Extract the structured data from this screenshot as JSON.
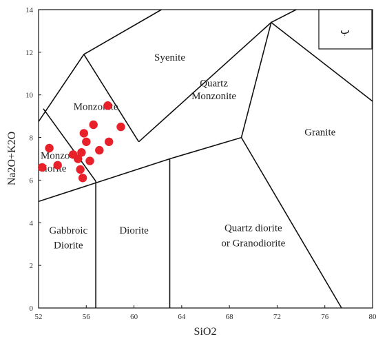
{
  "chart_data": {
    "type": "scatter",
    "title": "",
    "xlabel": "SiO2",
    "ylabel": "Na2O+K2O",
    "xlim": [
      52,
      80
    ],
    "ylim": [
      0,
      14
    ],
    "x_ticks": [
      {
        "value": 52,
        "label": "52"
      },
      {
        "value": 56,
        "label": "56"
      },
      {
        "value": 60,
        "label": "60"
      },
      {
        "value": 64,
        "label": "64"
      },
      {
        "value": 68,
        "label": "68"
      },
      {
        "value": 72,
        "label": "72"
      },
      {
        "value": 76,
        "label": "76"
      },
      {
        "value": 80,
        "label": "80"
      }
    ],
    "y_ticks": [
      {
        "value": 0,
        "label": "0"
      },
      {
        "value": 2,
        "label": "2"
      },
      {
        "value": 4,
        "label": "4"
      },
      {
        "value": 6,
        "label": "6"
      },
      {
        "value": 8,
        "label": "8"
      },
      {
        "value": 10,
        "label": "10"
      },
      {
        "value": 12,
        "label": "12"
      },
      {
        "value": 14,
        "label": "14"
      }
    ],
    "grid": false,
    "legend": "none",
    "point_color": "#e8202a",
    "points": [
      {
        "x": 52.3,
        "y": 6.6
      },
      {
        "x": 52.9,
        "y": 7.5
      },
      {
        "x": 53.6,
        "y": 6.7
      },
      {
        "x": 54.9,
        "y": 7.2
      },
      {
        "x": 55.3,
        "y": 7.0
      },
      {
        "x": 55.5,
        "y": 6.5
      },
      {
        "x": 55.6,
        "y": 7.3
      },
      {
        "x": 55.7,
        "y": 6.1
      },
      {
        "x": 55.8,
        "y": 8.2
      },
      {
        "x": 56.0,
        "y": 7.8
      },
      {
        "x": 56.3,
        "y": 6.9
      },
      {
        "x": 56.6,
        "y": 8.6
      },
      {
        "x": 57.1,
        "y": 7.4
      },
      {
        "x": 57.8,
        "y": 9.5
      },
      {
        "x": 57.9,
        "y": 7.8
      },
      {
        "x": 58.9,
        "y": 8.5
      }
    ],
    "field_boundaries": [
      [
        [
          52,
          8.75
        ],
        [
          55.8,
          11.9
        ],
        [
          62.3,
          14
        ]
      ],
      [
        [
          55.8,
          11.9
        ],
        [
          60.4,
          7.8
        ]
      ],
      [
        [
          52.4,
          9.35
        ],
        [
          56.8,
          5.95
        ]
      ],
      [
        [
          52,
          5.0
        ],
        [
          63,
          7.0
        ],
        [
          69,
          8.0
        ],
        [
          71.5,
          13.4
        ],
        [
          80,
          9.7
        ]
      ],
      [
        [
          60.4,
          7.8
        ],
        [
          71.5,
          13.4
        ],
        [
          73.6,
          14
        ]
      ],
      [
        [
          56.8,
          5.95
        ],
        [
          56.8,
          0
        ]
      ],
      [
        [
          63,
          7.0
        ],
        [
          63,
          0
        ]
      ],
      [
        [
          69,
          8.0
        ],
        [
          77.4,
          0
        ]
      ]
    ],
    "fields": [
      {
        "name": "Syenite",
        "x": 63.0,
        "y": 11.6
      },
      {
        "name": "Quartz",
        "x": 66.7,
        "y": 10.4
      },
      {
        "name": "Monzonite",
        "x": 66.7,
        "y": 9.8
      },
      {
        "name": "Monzonite",
        "x": 56.8,
        "y": 9.3
      },
      {
        "name": "Monzo",
        "x": 53.4,
        "y": 7.0
      },
      {
        "name": "diorite",
        "x": 53.2,
        "y": 6.4
      },
      {
        "name": "Granite",
        "x": 75.6,
        "y": 8.1
      },
      {
        "name": "Gabbroic",
        "x": 54.5,
        "y": 3.5
      },
      {
        "name": "Diorite",
        "x": 54.5,
        "y": 2.8
      },
      {
        "name": "Diorite",
        "x": 60.0,
        "y": 3.5
      },
      {
        "name": "Quartz diorite",
        "x": 70.0,
        "y": 3.6
      },
      {
        "name": "or Granodiorite",
        "x": 70.0,
        "y": 2.9
      }
    ],
    "badge": "ب"
  }
}
